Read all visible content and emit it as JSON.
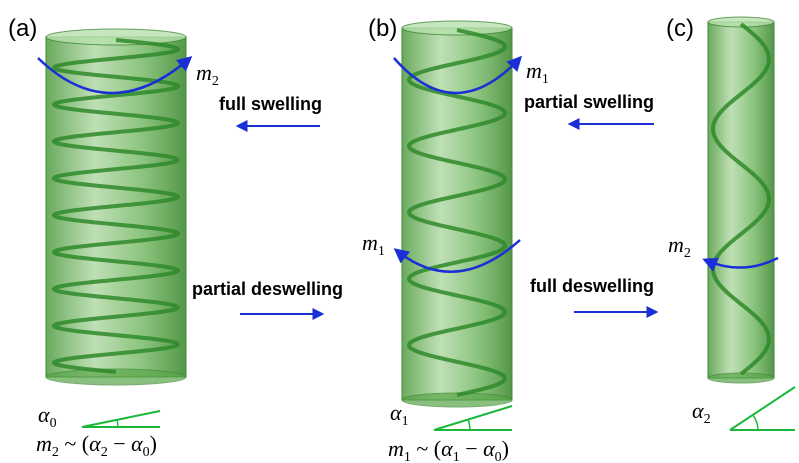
{
  "panels": [
    {
      "label": "(a)",
      "angle_symbol": "α",
      "angle_subscript": "0",
      "moment_symbol": "m",
      "moment_subscript": "2",
      "formula": {
        "lhs": "m",
        "lhs_sub": "2",
        "rel": " ~ (",
        "a1": "α",
        "a1_sub": "2",
        "minus": " − ",
        "a2": "α",
        "a2_sub": "0",
        "close": ")"
      }
    },
    {
      "label": "(b)",
      "angle_symbol": "α",
      "angle_subscript": "1",
      "moment_top_symbol": "m",
      "moment_top_subscript": "1",
      "moment_mid_symbol": "m",
      "moment_mid_subscript": "1",
      "formula": {
        "lhs": "m",
        "lhs_sub": "1",
        "rel": " ~ (",
        "a1": "α",
        "a1_sub": "1",
        "minus": " − ",
        "a2": "α",
        "a2_sub": "0",
        "close": ")"
      }
    },
    {
      "label": "(c)",
      "angle_symbol": "α",
      "angle_subscript": "2",
      "moment_symbol": "m",
      "moment_subscript": "2"
    }
  ],
  "processes": {
    "full_swelling": "full swelling",
    "partial_swelling": "partial swelling",
    "partial_deswelling": "partial deswelling",
    "full_deswelling": "full deswelling"
  },
  "colors": {
    "cylinder_fill": "#5aa64a",
    "cylinder_edge": "#3e8a36",
    "helix": "#2f8a2a",
    "moment_arrow": "#1a2fd6",
    "process_arrow": "#1a2fd6",
    "angle_line": "#19b83a"
  }
}
